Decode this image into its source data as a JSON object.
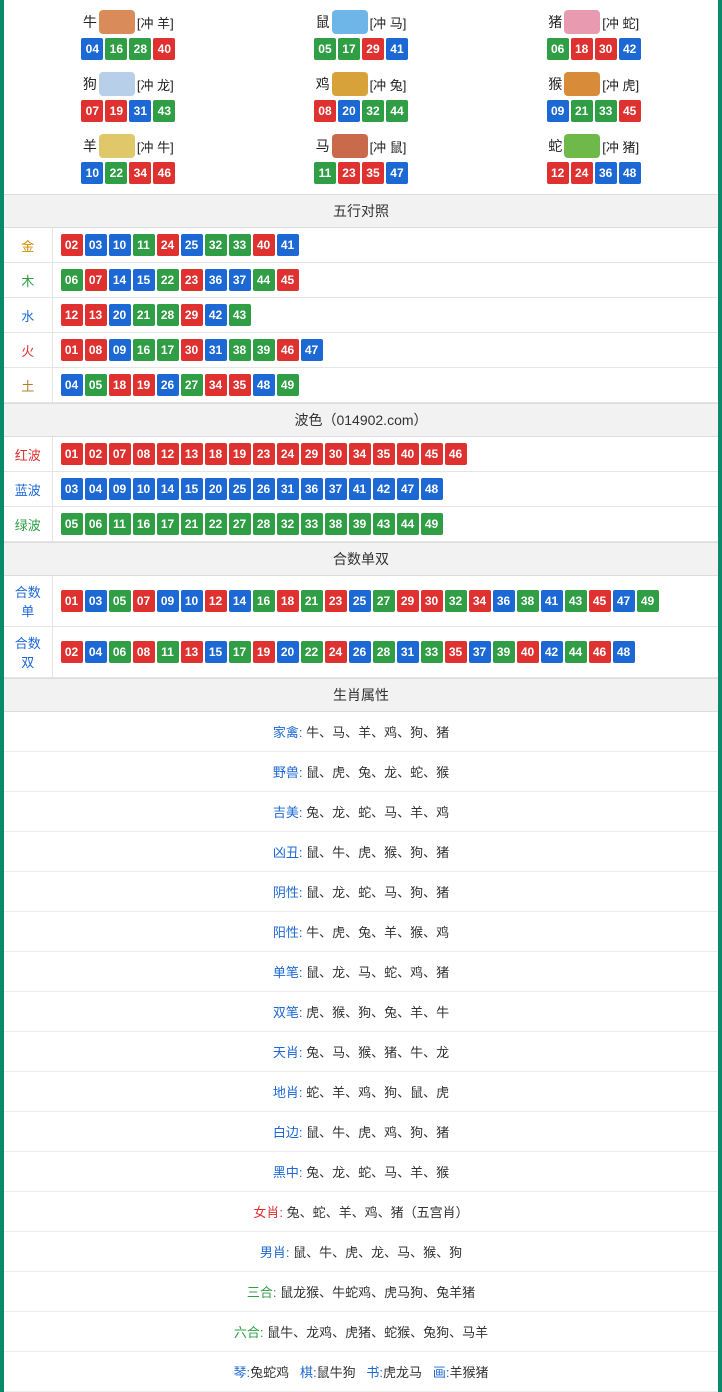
{
  "colors": {
    "red": "#e03131",
    "blue": "#1c68d4",
    "green": "#2f9e44",
    "border": "#0a8a6a"
  },
  "ball_color_map": {
    "01": "r",
    "02": "r",
    "07": "r",
    "08": "r",
    "12": "r",
    "13": "r",
    "18": "r",
    "19": "r",
    "23": "r",
    "24": "r",
    "29": "r",
    "30": "r",
    "34": "r",
    "35": "r",
    "40": "r",
    "45": "r",
    "46": "r",
    "03": "b",
    "04": "b",
    "09": "b",
    "10": "b",
    "14": "b",
    "15": "b",
    "20": "b",
    "25": "b",
    "26": "b",
    "31": "b",
    "36": "b",
    "37": "b",
    "41": "b",
    "42": "b",
    "47": "b",
    "48": "b",
    "05": "g",
    "06": "g",
    "11": "g",
    "16": "g",
    "17": "g",
    "21": "g",
    "22": "g",
    "27": "g",
    "28": "g",
    "32": "g",
    "33": "g",
    "38": "g",
    "39": "g",
    "43": "g",
    "44": "g",
    "49": "g"
  },
  "zodiac_icon_colors": {
    "牛": "#d98c5a",
    "鼠": "#6fb6e8",
    "猪": "#e89ab0",
    "狗": "#b7cfe8",
    "鸡": "#d8a23a",
    "猴": "#d88c3a",
    "羊": "#e0c86a",
    "马": "#c96a4a",
    "蛇": "#6fb84a"
  },
  "zodiac": [
    {
      "name": "牛",
      "clash": "[冲 羊]",
      "nums": [
        "04",
        "16",
        "28",
        "40"
      ]
    },
    {
      "name": "鼠",
      "clash": "[冲 马]",
      "nums": [
        "05",
        "17",
        "29",
        "41"
      ]
    },
    {
      "name": "猪",
      "clash": "[冲 蛇]",
      "nums": [
        "06",
        "18",
        "30",
        "42"
      ]
    },
    {
      "name": "狗",
      "clash": "[冲 龙]",
      "nums": [
        "07",
        "19",
        "31",
        "43"
      ]
    },
    {
      "name": "鸡",
      "clash": "[冲 兔]",
      "nums": [
        "08",
        "20",
        "32",
        "44"
      ]
    },
    {
      "name": "猴",
      "clash": "[冲 虎]",
      "nums": [
        "09",
        "21",
        "33",
        "45"
      ]
    },
    {
      "name": "羊",
      "clash": "[冲 牛]",
      "nums": [
        "10",
        "22",
        "34",
        "46"
      ]
    },
    {
      "name": "马",
      "clash": "[冲 鼠]",
      "nums": [
        "11",
        "23",
        "35",
        "47"
      ]
    },
    {
      "name": "蛇",
      "clash": "[冲 猪]",
      "nums": [
        "12",
        "24",
        "36",
        "48"
      ]
    }
  ],
  "wuxing": {
    "title": "五行对照",
    "rows": [
      {
        "label": "金",
        "cls": "lab-gold",
        "nums": [
          "02",
          "03",
          "10",
          "11",
          "24",
          "25",
          "32",
          "33",
          "40",
          "41"
        ]
      },
      {
        "label": "木",
        "cls": "lab-wood",
        "nums": [
          "06",
          "07",
          "14",
          "15",
          "22",
          "23",
          "36",
          "37",
          "44",
          "45"
        ]
      },
      {
        "label": "水",
        "cls": "lab-water",
        "nums": [
          "12",
          "13",
          "20",
          "21",
          "28",
          "29",
          "42",
          "43"
        ]
      },
      {
        "label": "火",
        "cls": "lab-fire",
        "nums": [
          "01",
          "08",
          "09",
          "16",
          "17",
          "30",
          "31",
          "38",
          "39",
          "46",
          "47"
        ]
      },
      {
        "label": "土",
        "cls": "lab-earth",
        "nums": [
          "04",
          "05",
          "18",
          "19",
          "26",
          "27",
          "34",
          "35",
          "48",
          "49"
        ]
      }
    ]
  },
  "bose": {
    "title": "波色（014902.com）",
    "rows": [
      {
        "label": "红波",
        "cls": "lab-red",
        "nums": [
          "01",
          "02",
          "07",
          "08",
          "12",
          "13",
          "18",
          "19",
          "23",
          "24",
          "29",
          "30",
          "34",
          "35",
          "40",
          "45",
          "46"
        ]
      },
      {
        "label": "蓝波",
        "cls": "lab-blue",
        "nums": [
          "03",
          "04",
          "09",
          "10",
          "14",
          "15",
          "20",
          "25",
          "26",
          "31",
          "36",
          "37",
          "41",
          "42",
          "47",
          "48"
        ]
      },
      {
        "label": "绿波",
        "cls": "lab-green",
        "nums": [
          "05",
          "06",
          "11",
          "16",
          "17",
          "21",
          "22",
          "27",
          "28",
          "32",
          "33",
          "38",
          "39",
          "43",
          "44",
          "49"
        ]
      }
    ]
  },
  "heshu": {
    "title": "合数单双",
    "rows": [
      {
        "label": "合数单",
        "cls": "lab-blue",
        "nums": [
          "01",
          "03",
          "05",
          "07",
          "09",
          "10",
          "12",
          "14",
          "16",
          "18",
          "21",
          "23",
          "25",
          "27",
          "29",
          "30",
          "32",
          "34",
          "36",
          "38",
          "41",
          "43",
          "45",
          "47",
          "49"
        ]
      },
      {
        "label": "合数双",
        "cls": "lab-blue",
        "nums": [
          "02",
          "04",
          "06",
          "08",
          "11",
          "13",
          "15",
          "17",
          "19",
          "20",
          "22",
          "24",
          "26",
          "28",
          "31",
          "33",
          "35",
          "37",
          "39",
          "40",
          "42",
          "44",
          "46",
          "48"
        ]
      }
    ]
  },
  "attrs": {
    "title": "生肖属性",
    "rows": [
      {
        "key": "家禽",
        "keycls": "attr-key",
        "val": "牛、马、羊、鸡、狗、猪"
      },
      {
        "key": "野兽",
        "keycls": "attr-key",
        "val": "鼠、虎、兔、龙、蛇、猴"
      },
      {
        "key": "吉美",
        "keycls": "attr-key",
        "val": "兔、龙、蛇、马、羊、鸡"
      },
      {
        "key": "凶丑",
        "keycls": "attr-key",
        "val": "鼠、牛、虎、猴、狗、猪"
      },
      {
        "key": "阴性",
        "keycls": "attr-key",
        "val": "鼠、龙、蛇、马、狗、猪"
      },
      {
        "key": "阳性",
        "keycls": "attr-key",
        "val": "牛、虎、兔、羊、猴、鸡"
      },
      {
        "key": "单笔",
        "keycls": "attr-key",
        "val": "鼠、龙、马、蛇、鸡、猪"
      },
      {
        "key": "双笔",
        "keycls": "attr-key",
        "val": "虎、猴、狗、兔、羊、牛"
      },
      {
        "key": "天肖",
        "keycls": "attr-key",
        "val": "兔、马、猴、猪、牛、龙"
      },
      {
        "key": "地肖",
        "keycls": "attr-key",
        "val": "蛇、羊、鸡、狗、鼠、虎"
      },
      {
        "key": "白边",
        "keycls": "attr-key",
        "val": "鼠、牛、虎、鸡、狗、猪"
      },
      {
        "key": "黑中",
        "keycls": "attr-key",
        "val": "兔、龙、蛇、马、羊、猴"
      },
      {
        "key": "女肖",
        "keycls": "attr-key-red",
        "val": "兔、蛇、羊、鸡、猪（五宫肖）"
      },
      {
        "key": "男肖",
        "keycls": "attr-key",
        "val": "鼠、牛、虎、龙、马、猴、狗"
      },
      {
        "key": "三合",
        "keycls": "attr-key-green",
        "val": "鼠龙猴、牛蛇鸡、虎马狗、兔羊猪"
      },
      {
        "key": "六合",
        "keycls": "attr-key-green",
        "val": "鼠牛、龙鸡、虎猪、蛇猴、兔狗、马羊"
      }
    ],
    "footer": [
      {
        "k": "琴",
        "kcls": "attr-key",
        "v": "兔蛇鸡"
      },
      {
        "k": "棋",
        "kcls": "attr-key",
        "v": "鼠牛狗"
      },
      {
        "k": "书",
        "kcls": "attr-key",
        "v": "虎龙马"
      },
      {
        "k": "画",
        "kcls": "attr-key",
        "v": "羊猴猪"
      }
    ]
  }
}
